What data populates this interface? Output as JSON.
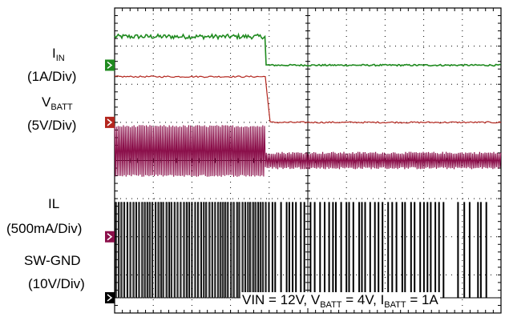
{
  "labels": {
    "iin_symbol": "I",
    "iin_sub": "IN",
    "iin_scale": "(1A/Div)",
    "vbatt_symbol": "V",
    "vbatt_sub": "BATT",
    "vbatt_scale": "(5V/Div)",
    "il_name": "IL",
    "il_scale": "(500mA/Div)",
    "sw_name": "SW-GND",
    "sw_scale": "(10V/Div)"
  },
  "conditions": {
    "vin": "VIN = 12V, ",
    "vbatt_symbol": "V",
    "vbatt_sub": "BATT",
    "vbatt_value": " = 4V, ",
    "ibatt_symbol": "I",
    "ibatt_sub": "BATT",
    "ibatt_value": " = 1A"
  },
  "colors": {
    "iin": "#1f8a1f",
    "vbatt": "#b3261e",
    "il": "#8b0f4a",
    "sw": "#000000",
    "grid": "#000000",
    "background": "#ffffff"
  },
  "chart_data": {
    "type": "line",
    "divisions": {
      "x": 10,
      "y": 8
    },
    "step_time_div": 3.9,
    "series": [
      {
        "channel": "iin",
        "before_div": 7.25,
        "after_div": 6.5,
        "noise_div": 0.06,
        "marker_div": 6.5
      },
      {
        "channel": "vbatt",
        "before_div": 6.2,
        "after_div": 5.0,
        "noise_div": 0.02,
        "marker_div": 5.0
      },
      {
        "channel": "il",
        "before_top_div": 4.9,
        "before_bottom_div": 3.6,
        "after_top_div": 4.2,
        "after_bottom_div": 3.8,
        "marker_div": 2.0
      },
      {
        "channel": "sw",
        "high_div": 2.9,
        "low_div": 0.4,
        "marker_div": 0.4
      }
    ]
  }
}
